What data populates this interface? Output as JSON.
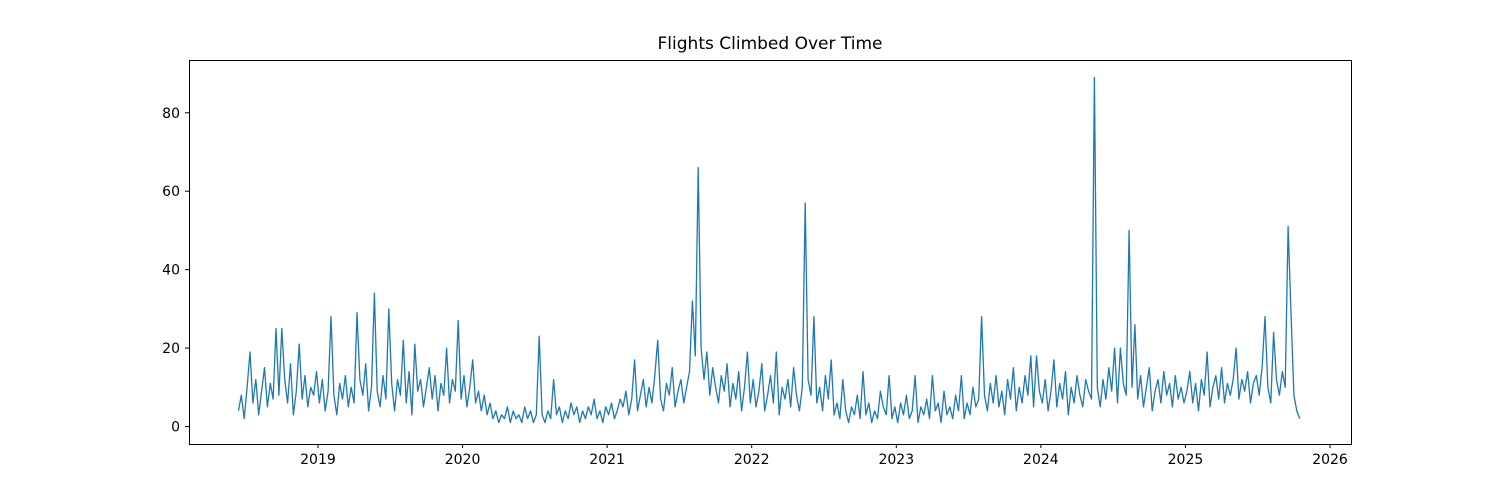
{
  "chart_data": {
    "type": "line",
    "title": "Flights Climbed Over Time",
    "xlabel": "",
    "ylabel": "",
    "legend_position": "none",
    "grid": false,
    "line_color": "#1f77b4",
    "axis_color": "#000000",
    "background_color": "#ffffff",
    "xlim": [
      2018.108,
      2026.145
    ],
    "ylim": [
      -4.45,
      93.45
    ],
    "xticks": [
      "2019",
      "2020",
      "2021",
      "2022",
      "2023",
      "2024",
      "2025",
      "2026"
    ],
    "xtick_values": [
      2019,
      2020,
      2021,
      2022,
      2023,
      2024,
      2025,
      2026
    ],
    "yticks": [
      "0",
      "20",
      "40",
      "60",
      "80"
    ],
    "ytick_values": [
      0,
      20,
      40,
      60,
      80
    ],
    "series": {
      "x_start": 2018.45,
      "x_step": 0.02,
      "values": [
        4,
        8,
        2,
        10,
        19,
        6,
        12,
        3,
        9,
        15,
        5,
        11,
        7,
        25,
        8,
        25,
        12,
        6,
        16,
        3,
        9,
        21,
        7,
        13,
        5,
        10,
        8,
        14,
        6,
        12,
        4,
        9,
        28,
        8,
        3,
        11,
        7,
        13,
        5,
        10,
        6,
        29,
        12,
        8,
        16,
        4,
        10,
        34,
        9,
        5,
        13,
        7,
        30,
        11,
        4,
        12,
        8,
        22,
        6,
        14,
        3,
        21,
        9,
        12,
        5,
        10,
        15,
        7,
        13,
        4,
        11,
        8,
        20,
        6,
        12,
        9,
        27,
        7,
        13,
        5,
        10,
        17,
        6,
        9,
        4,
        8,
        3,
        6,
        2,
        4,
        1,
        3,
        2,
        5,
        1,
        4,
        2,
        3,
        1,
        5,
        2,
        4,
        1,
        3,
        23,
        3,
        1,
        4,
        2,
        12,
        3,
        5,
        1,
        4,
        2,
        6,
        3,
        5,
        1,
        4,
        2,
        5,
        3,
        7,
        2,
        4,
        1,
        5,
        3,
        6,
        2,
        4,
        7,
        5,
        9,
        3,
        7,
        17,
        4,
        8,
        12,
        5,
        10,
        6,
        13,
        22,
        7,
        4,
        11,
        8,
        15,
        5,
        9,
        12,
        6,
        10,
        14,
        32,
        18,
        66,
        20,
        12,
        19,
        8,
        15,
        10,
        6,
        13,
        9,
        16,
        5,
        11,
        7,
        14,
        4,
        10,
        19,
        6,
        12,
        5,
        9,
        16,
        4,
        8,
        13,
        6,
        19,
        3,
        10,
        7,
        12,
        5,
        15,
        8,
        4,
        10,
        57,
        12,
        8,
        28,
        6,
        10,
        4,
        13,
        7,
        17,
        3,
        6,
        2,
        12,
        4,
        1,
        5,
        3,
        8,
        2,
        14,
        3,
        6,
        1,
        4,
        2,
        9,
        5,
        3,
        13,
        2,
        5,
        1,
        6,
        3,
        8,
        2,
        4,
        13,
        1,
        5,
        3,
        7,
        2,
        13,
        4,
        6,
        1,
        9,
        3,
        5,
        2,
        8,
        4,
        13,
        2,
        6,
        3,
        10,
        5,
        7,
        28,
        8,
        4,
        11,
        6,
        13,
        5,
        9,
        3,
        12,
        7,
        15,
        4,
        10,
        6,
        13,
        8,
        18,
        5,
        18,
        9,
        6,
        12,
        4,
        9,
        17,
        5,
        11,
        7,
        14,
        3,
        10,
        6,
        13,
        8,
        5,
        12,
        9,
        7,
        89,
        10,
        5,
        12,
        7,
        15,
        9,
        20,
        6,
        20,
        11,
        8,
        50,
        10,
        26,
        7,
        13,
        5,
        10,
        15,
        4,
        9,
        12,
        6,
        14,
        8,
        11,
        5,
        13,
        7,
        10,
        6,
        9,
        14,
        6,
        11,
        4,
        12,
        8,
        19,
        5,
        10,
        13,
        7,
        15,
        6,
        11,
        8,
        12,
        20,
        7,
        12,
        9,
        14,
        6,
        11,
        13,
        8,
        15,
        28,
        10,
        6,
        24,
        12,
        8,
        14,
        10,
        51,
        29,
        8,
        4,
        2
      ]
    }
  }
}
